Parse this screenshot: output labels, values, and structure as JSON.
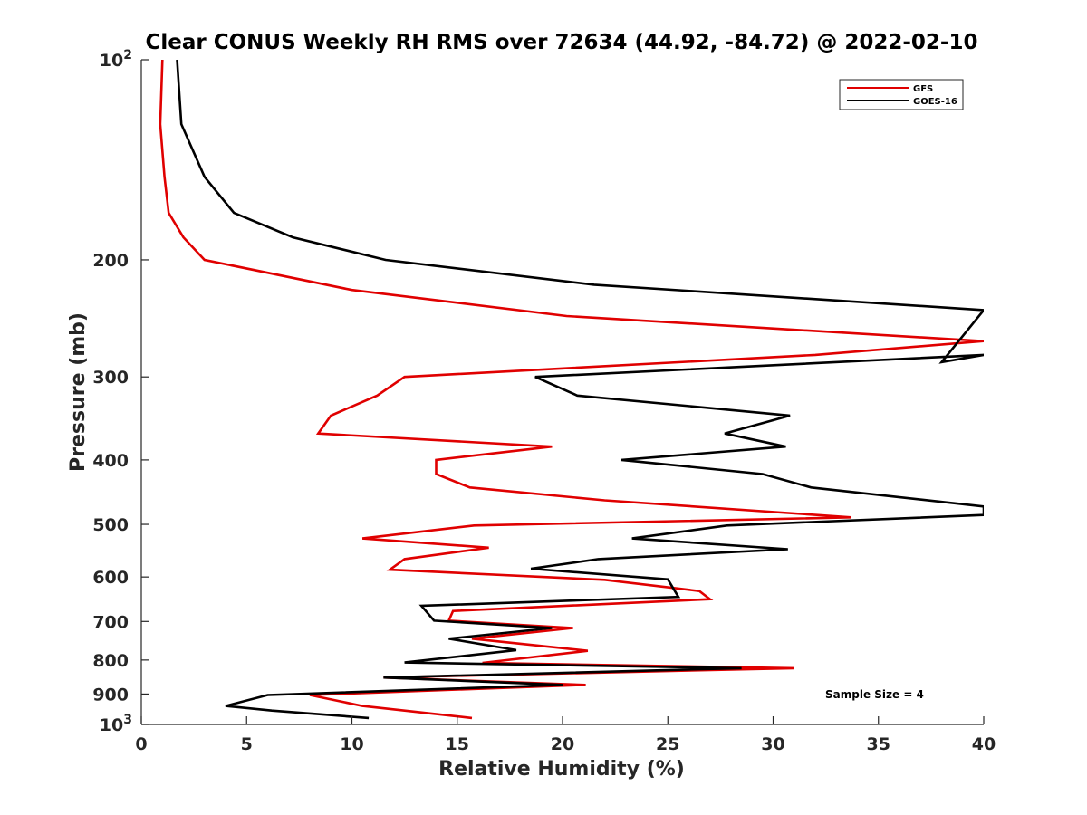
{
  "chart_data": {
    "type": "line",
    "title": "Clear CONUS Weekly RH RMS over 72634 (44.92, -84.72) @ 2022-02-10",
    "xlabel": "Relative Humidity (%)",
    "ylabel": "Pressure (mb)",
    "xlim": [
      0,
      40
    ],
    "ylim": [
      100,
      1000
    ],
    "yscale": "log",
    "y_reversed": true,
    "xticks": [
      0,
      5,
      10,
      15,
      20,
      25,
      30,
      35,
      40
    ],
    "xtick_labels": [
      "0",
      "5",
      "10",
      "15",
      "20",
      "25",
      "30",
      "35",
      "40"
    ],
    "yticks": [
      100,
      200,
      300,
      400,
      500,
      600,
      700,
      800,
      900,
      1000
    ],
    "ytick_labels": [
      {
        "base": "10",
        "exp": "2"
      },
      {
        "base": "200",
        "exp": ""
      },
      {
        "base": "300",
        "exp": ""
      },
      {
        "base": "400",
        "exp": ""
      },
      {
        "base": "500",
        "exp": ""
      },
      {
        "base": "600",
        "exp": ""
      },
      {
        "base": "700",
        "exp": ""
      },
      {
        "base": "800",
        "exp": ""
      },
      {
        "base": "900",
        "exp": ""
      },
      {
        "base": "10",
        "exp": "3"
      }
    ],
    "legend_position": "top-right",
    "annotation": "Sample Size = 4",
    "series": [
      {
        "name": "GFS",
        "color": "#e00000",
        "points": [
          [
            1.0,
            100
          ],
          [
            0.9,
            125
          ],
          [
            1.1,
            150
          ],
          [
            1.3,
            170
          ],
          [
            2.0,
            185
          ],
          [
            3.0,
            200
          ],
          [
            10.0,
            222
          ],
          [
            20.2,
            243
          ],
          [
            40.0,
            265
          ],
          [
            32.0,
            278
          ],
          [
            12.5,
            300
          ],
          [
            11.2,
            320
          ],
          [
            9.0,
            343
          ],
          [
            8.4,
            365
          ],
          [
            19.5,
            382
          ],
          [
            14.0,
            400
          ],
          [
            14.0,
            420
          ],
          [
            15.6,
            440
          ],
          [
            22.0,
            460
          ],
          [
            33.7,
            488
          ],
          [
            15.8,
            502
          ],
          [
            10.5,
            525
          ],
          [
            16.5,
            542
          ],
          [
            12.5,
            564
          ],
          [
            11.8,
            585
          ],
          [
            22.0,
            606
          ],
          [
            26.5,
            630
          ],
          [
            27.0,
            648
          ],
          [
            14.8,
            675
          ],
          [
            14.6,
            698
          ],
          [
            20.5,
            716
          ],
          [
            15.7,
            743
          ],
          [
            21.2,
            775
          ],
          [
            16.2,
            808
          ],
          [
            31.0,
            823
          ],
          [
            11.5,
            850
          ],
          [
            21.1,
            872
          ],
          [
            8.0,
            903
          ],
          [
            10.5,
            938
          ],
          [
            15.7,
            978
          ]
        ]
      },
      {
        "name": "GOES-16",
        "color": "#000000",
        "points": [
          [
            1.7,
            100
          ],
          [
            1.9,
            125
          ],
          [
            3.0,
            150
          ],
          [
            4.4,
            170
          ],
          [
            7.2,
            185
          ],
          [
            11.6,
            200
          ],
          [
            21.5,
            218
          ],
          [
            40.0,
            238
          ],
          [
            38.0,
            285
          ],
          [
            40.0,
            278
          ],
          [
            18.7,
            300
          ],
          [
            20.7,
            320
          ],
          [
            30.8,
            343
          ],
          [
            27.7,
            365
          ],
          [
            30.6,
            382
          ],
          [
            22.8,
            400
          ],
          [
            29.5,
            420
          ],
          [
            31.8,
            440
          ],
          [
            40.0,
            470
          ],
          [
            40.0,
            484
          ],
          [
            27.8,
            502
          ],
          [
            23.3,
            525
          ],
          [
            30.7,
            545
          ],
          [
            21.7,
            564
          ],
          [
            18.5,
            583
          ],
          [
            25.0,
            605
          ],
          [
            25.5,
            643
          ],
          [
            13.3,
            663
          ],
          [
            13.9,
            698
          ],
          [
            19.5,
            716
          ],
          [
            14.6,
            743
          ],
          [
            17.8,
            773
          ],
          [
            12.5,
            807
          ],
          [
            28.5,
            823
          ],
          [
            11.5,
            850
          ],
          [
            20.0,
            872
          ],
          [
            6.0,
            903
          ],
          [
            4.0,
            938
          ],
          [
            6.2,
            953
          ],
          [
            10.8,
            978
          ]
        ]
      }
    ]
  }
}
